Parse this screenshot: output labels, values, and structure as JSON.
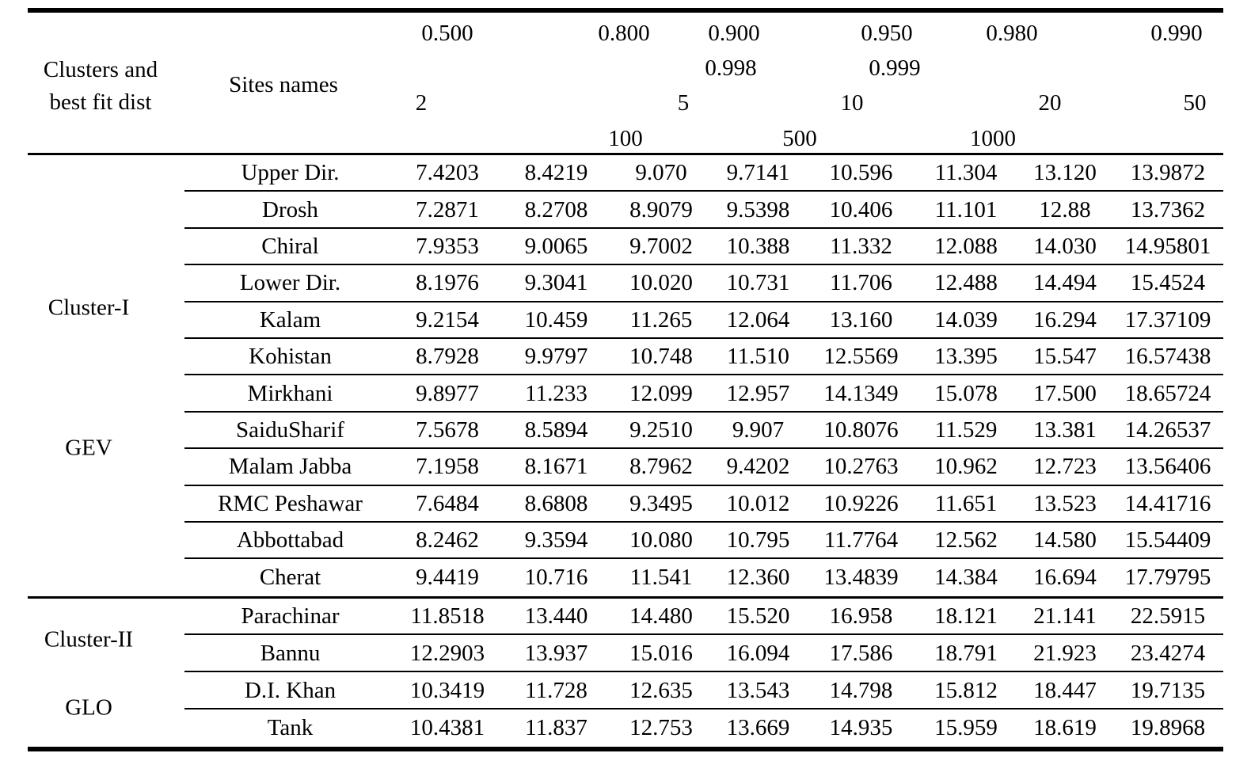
{
  "page": {
    "background_color": "#ffffff",
    "text_color": "#000000"
  },
  "table": {
    "corner_header": "Clusters and\nbest fit dist",
    "sites_header": "Sites names",
    "header": {
      "probability_row1": [
        "0.500",
        "0.800",
        "0.900",
        "0.950",
        "0.980",
        "0.990"
      ],
      "probability_row2": [
        "0.998",
        "0.999"
      ],
      "return_period_row1": [
        "2",
        "5",
        "10",
        "20",
        "50"
      ],
      "return_period_row2": [
        "100",
        "500",
        "1000"
      ]
    },
    "sections": [
      {
        "cluster": "Cluster-I",
        "distribution": "GEV",
        "rows": [
          {
            "site": "Upper Dir.",
            "values": [
              "7.4203",
              "8.4219",
              "9.070",
              "9.7141",
              "10.596",
              "11.304",
              "13.120",
              "13.9872"
            ]
          },
          {
            "site": "Drosh",
            "values": [
              "7.2871",
              "8.2708",
              "8.9079",
              "9.5398",
              "10.406",
              "11.101",
              "12.88",
              "13.7362"
            ]
          },
          {
            "site": "Chiral",
            "values": [
              "7.9353",
              "9.0065",
              "9.7002",
              "10.388",
              "11.332",
              "12.088",
              "14.030",
              "14.95801"
            ]
          },
          {
            "site": "Lower Dir.",
            "values": [
              "8.1976",
              "9.3041",
              "10.020",
              "10.731",
              "11.706",
              "12.488",
              "14.494",
              "15.4524"
            ]
          },
          {
            "site": "Kalam",
            "values": [
              "9.2154",
              "10.459",
              "11.265",
              "12.064",
              "13.160",
              "14.039",
              "16.294",
              "17.37109"
            ]
          },
          {
            "site": "Kohistan",
            "values": [
              "8.7928",
              "9.9797",
              "10.748",
              "11.510",
              "12.5569",
              "13.395",
              "15.547",
              "16.57438"
            ]
          },
          {
            "site": "Mirkhani",
            "values": [
              "9.8977",
              "11.233",
              "12.099",
              "12.957",
              "14.1349",
              "15.078",
              "17.500",
              "18.65724"
            ]
          },
          {
            "site": "SaiduSharif",
            "values": [
              "7.5678",
              "8.5894",
              "9.2510",
              "9.907",
              "10.8076",
              "11.529",
              "13.381",
              "14.26537"
            ]
          },
          {
            "site": "Malam Jabba",
            "values": [
              "7.1958",
              "8.1671",
              "8.7962",
              "9.4202",
              "10.2763",
              "10.962",
              "12.723",
              "13.56406"
            ]
          },
          {
            "site": "RMC Peshawar",
            "values": [
              "7.6484",
              "8.6808",
              "9.3495",
              "10.012",
              "10.9226",
              "11.651",
              "13.523",
              "14.41716"
            ]
          },
          {
            "site": "Abbottabad",
            "values": [
              "8.2462",
              "9.3594",
              "10.080",
              "10.795",
              "11.7764",
              "12.562",
              "14.580",
              "15.54409"
            ]
          },
          {
            "site": "Cherat",
            "values": [
              "9.4419",
              "10.716",
              "11.541",
              "12.360",
              "13.4839",
              "14.384",
              "16.694",
              "17.79795"
            ]
          }
        ]
      },
      {
        "cluster": "Cluster-II",
        "distribution": "GLO",
        "rows": [
          {
            "site": "Parachinar",
            "values": [
              "11.8518",
              "13.440",
              "14.480",
              "15.520",
              "16.958",
              "18.121",
              "21.141",
              "22.5915"
            ]
          },
          {
            "site": "Bannu",
            "values": [
              "12.2903",
              "13.937",
              "15.016",
              "16.094",
              "17.586",
              "18.791",
              "21.923",
              "23.4274"
            ]
          },
          {
            "site": "D.I. Khan",
            "values": [
              "10.3419",
              "11.728",
              "12.635",
              "13.543",
              "14.798",
              "15.812",
              "18.447",
              "19.7135"
            ]
          },
          {
            "site": "Tank",
            "values": [
              "10.4381",
              "11.837",
              "12.753",
              "13.669",
              "14.935",
              "15.959",
              "18.619",
              "19.8968"
            ]
          }
        ]
      }
    ]
  }
}
